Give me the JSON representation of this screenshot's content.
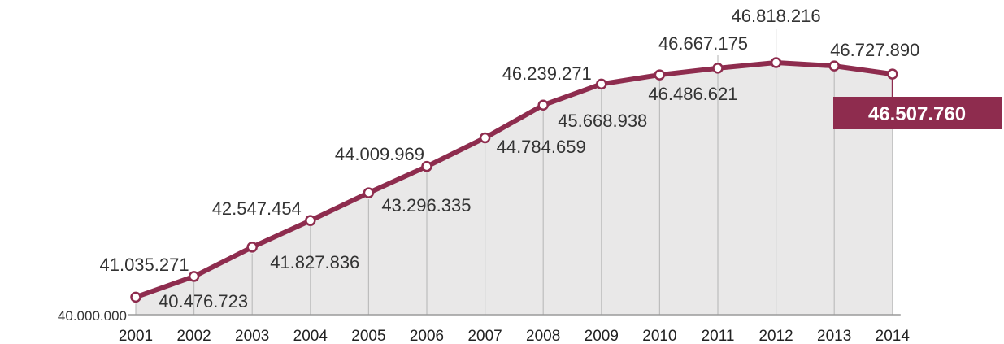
{
  "colors": {
    "line": "#8e2c4e",
    "area": "#e9e8e8",
    "grid": "#bdbdbd",
    "highlight_bg": "#8e2c4e"
  },
  "chart_data": {
    "type": "area",
    "categories": [
      "2001",
      "2002",
      "2003",
      "2004",
      "2005",
      "2006",
      "2007",
      "2008",
      "2009",
      "2010",
      "2011",
      "2012",
      "2013",
      "2014"
    ],
    "values": [
      40476723,
      41035271,
      41827836,
      42547454,
      43296335,
      44009969,
      44784659,
      45668938,
      46239271,
      46486621,
      46667175,
      46818216,
      46727890,
      46507760
    ],
    "value_labels": [
      "40.476.723",
      "41.035.271",
      "41.827.836",
      "42.547.454",
      "43.296.335",
      "44.009.969",
      "44.784.659",
      "45.668.938",
      "46.239.271",
      "46.486.621",
      "46.667.175",
      "46.818.216",
      "46.727.890",
      "46.507.760"
    ],
    "baseline_label": "40.000.000",
    "ylim": [
      40000000,
      46818216
    ],
    "highlight_index": 13,
    "grid": true,
    "title": "",
    "xlabel": "",
    "ylabel": ""
  }
}
